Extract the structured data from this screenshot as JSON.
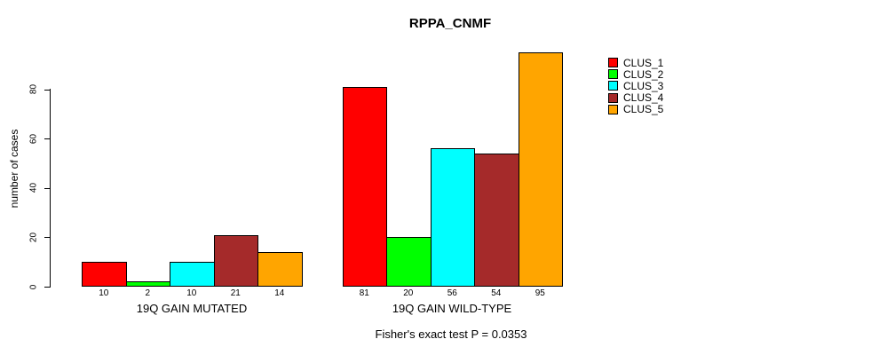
{
  "chart_data": {
    "type": "bar",
    "title": "RPPA_CNMF",
    "ylabel": "number of cases",
    "xlabel": "",
    "ylim": [
      0,
      95
    ],
    "yticks": [
      0,
      20,
      40,
      60,
      80
    ],
    "grid": false,
    "legend_position": "right-outside",
    "background_color": "#ffffff",
    "bar_border_color": "#000000",
    "groups": [
      {
        "label": "19Q GAIN MUTATED",
        "values": [
          10,
          2,
          10,
          21,
          14
        ]
      },
      {
        "label": "19Q GAIN WILD-TYPE",
        "values": [
          81,
          20,
          56,
          54,
          95
        ]
      }
    ],
    "series": [
      {
        "name": "CLUS_1",
        "color": "#ff0000"
      },
      {
        "name": "CLUS_2",
        "color": "#00ff00"
      },
      {
        "name": "CLUS_3",
        "color": "#00ffff"
      },
      {
        "name": "CLUS_4",
        "color": "#a52a2a"
      },
      {
        "name": "CLUS_5",
        "color": "#ffa500"
      }
    ],
    "footnote": "Fisher's exact test P = 0.0353"
  }
}
